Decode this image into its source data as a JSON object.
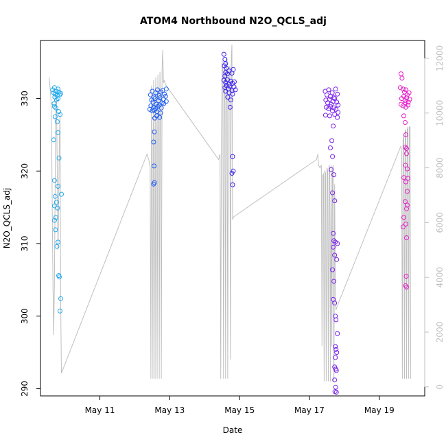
{
  "chart_data": {
    "type": "scatter",
    "title": "ATOM4 Northbound N2O_QCLS_adj",
    "xlabel": "Date",
    "ylabel": "N2O_QCLS_adj",
    "x_ticks": [
      "May 11",
      "May 13",
      "May 15",
      "May 17",
      "May 19"
    ],
    "x_tick_days": [
      11,
      13,
      15,
      17,
      19
    ],
    "xlim_days": [
      9.3,
      20.3
    ],
    "y_ticks": [
      290,
      300,
      310,
      320,
      330
    ],
    "ylim": [
      289,
      338
    ],
    "y2_ticks": [
      0,
      2000,
      4000,
      6000,
      8000,
      10000,
      12000
    ],
    "y2lim": [
      -330,
      12650
    ],
    "grid": false,
    "legend": "none",
    "colors": {
      "frame": "#000000",
      "altitude_line": "#bfbfbf",
      "right_axis": "#bfbfbf"
    },
    "series": [
      {
        "color": "#1fa8ee",
        "points": [
          [
            9.65,
            331.2
          ],
          [
            9.68,
            330.8
          ],
          [
            9.7,
            331.5
          ],
          [
            9.72,
            330.6
          ],
          [
            9.75,
            331.0
          ],
          [
            9.78,
            330.4
          ],
          [
            9.8,
            331.3
          ],
          [
            9.83,
            330.9
          ],
          [
            9.85,
            330.5
          ],
          [
            9.88,
            330.7
          ],
          [
            9.71,
            330.2
          ],
          [
            9.76,
            329.8
          ],
          [
            9.8,
            330.0
          ],
          [
            9.69,
            329.3
          ],
          [
            9.74,
            328.7
          ],
          [
            9.7,
            328.9
          ],
          [
            9.82,
            328.2
          ],
          [
            9.72,
            327.5
          ],
          [
            9.86,
            327.8
          ],
          [
            9.78,
            326.8
          ],
          [
            9.8,
            325.3
          ],
          [
            9.68,
            324.3
          ],
          [
            9.83,
            321.8
          ],
          [
            9.7,
            318.7
          ],
          [
            9.8,
            317.9
          ],
          [
            9.9,
            316.8
          ],
          [
            9.72,
            316.5
          ],
          [
            9.76,
            315.7
          ],
          [
            9.7,
            315.2
          ],
          [
            9.79,
            314.9
          ],
          [
            9.74,
            313.6
          ],
          [
            9.7,
            313.2
          ],
          [
            9.73,
            311.9
          ],
          [
            9.8,
            310.2
          ],
          [
            9.77,
            309.6
          ],
          [
            9.82,
            305.6
          ],
          [
            9.84,
            305.4
          ],
          [
            9.88,
            302.4
          ],
          [
            9.86,
            300.7
          ]
        ]
      },
      {
        "color": "#1f5ef4",
        "points": [
          [
            12.45,
            330.5
          ],
          [
            12.5,
            331.0
          ],
          [
            12.55,
            330.2
          ],
          [
            12.6,
            330.8
          ],
          [
            12.65,
            331.2
          ],
          [
            12.7,
            330.4
          ],
          [
            12.75,
            330.9
          ],
          [
            12.8,
            331.1
          ],
          [
            12.85,
            330.6
          ],
          [
            12.9,
            331.3
          ],
          [
            12.48,
            329.8
          ],
          [
            12.52,
            329.5
          ],
          [
            12.58,
            330.0
          ],
          [
            12.62,
            329.2
          ],
          [
            12.68,
            329.7
          ],
          [
            12.72,
            330.1
          ],
          [
            12.78,
            329.4
          ],
          [
            12.82,
            329.9
          ],
          [
            12.88,
            330.3
          ],
          [
            12.46,
            329.0
          ],
          [
            12.54,
            328.8
          ],
          [
            12.6,
            328.6
          ],
          [
            12.66,
            328.9
          ],
          [
            12.7,
            329.1
          ],
          [
            12.76,
            328.7
          ],
          [
            12.83,
            329.3
          ],
          [
            12.9,
            329.6
          ],
          [
            12.43,
            328.5
          ],
          [
            12.5,
            328.3
          ],
          [
            12.56,
            328.4
          ],
          [
            12.63,
            328.2
          ],
          [
            12.74,
            328.0
          ],
          [
            12.57,
            327.3
          ],
          [
            12.63,
            327.6
          ],
          [
            12.71,
            327.4
          ],
          [
            12.56,
            325.4
          ],
          [
            12.54,
            324.0
          ],
          [
            12.55,
            320.7
          ],
          [
            12.56,
            318.4
          ],
          [
            12.54,
            318.2
          ]
        ]
      },
      {
        "color": "#3b22f2",
        "points": [
          [
            14.55,
            336.1
          ],
          [
            14.58,
            335.4
          ],
          [
            14.6,
            334.8
          ],
          [
            14.56,
            334.5
          ],
          [
            14.62,
            334.2
          ],
          [
            14.6,
            333.6
          ],
          [
            14.65,
            333.4
          ],
          [
            14.58,
            333.1
          ],
          [
            14.7,
            333.8
          ],
          [
            14.78,
            333.5
          ],
          [
            14.82,
            334.0
          ],
          [
            14.55,
            332.5
          ],
          [
            14.6,
            332.2
          ],
          [
            14.65,
            332.6
          ],
          [
            14.7,
            332.0
          ],
          [
            14.75,
            332.4
          ],
          [
            14.8,
            332.1
          ],
          [
            14.85,
            332.3
          ],
          [
            14.58,
            331.5
          ],
          [
            14.62,
            331.8
          ],
          [
            14.68,
            331.3
          ],
          [
            14.72,
            331.7
          ],
          [
            14.78,
            331.1
          ],
          [
            14.84,
            331.6
          ],
          [
            14.6,
            331.0
          ],
          [
            14.7,
            330.8
          ],
          [
            14.8,
            330.6
          ],
          [
            14.88,
            331.2
          ],
          [
            14.66,
            330.2
          ],
          [
            14.75,
            329.8
          ],
          [
            14.73,
            328.8
          ],
          [
            14.8,
            322.0
          ],
          [
            14.82,
            320.0
          ],
          [
            14.78,
            319.7
          ],
          [
            14.8,
            318.1
          ]
        ]
      },
      {
        "color": "#7920ee",
        "points": [
          [
            17.45,
            331.0
          ],
          [
            17.5,
            330.5
          ],
          [
            17.55,
            331.2
          ],
          [
            17.6,
            330.3
          ],
          [
            17.65,
            330.8
          ],
          [
            17.7,
            330.1
          ],
          [
            17.75,
            331.3
          ],
          [
            17.8,
            330.6
          ],
          [
            17.47,
            329.8
          ],
          [
            17.52,
            329.4
          ],
          [
            17.58,
            329.9
          ],
          [
            17.62,
            329.2
          ],
          [
            17.68,
            329.6
          ],
          [
            17.72,
            330.0
          ],
          [
            17.78,
            329.5
          ],
          [
            17.82,
            329.1
          ],
          [
            17.48,
            328.8
          ],
          [
            17.55,
            328.6
          ],
          [
            17.6,
            328.9
          ],
          [
            17.66,
            328.3
          ],
          [
            17.7,
            328.7
          ],
          [
            17.76,
            328.5
          ],
          [
            17.82,
            328.1
          ],
          [
            17.46,
            327.7
          ],
          [
            17.58,
            327.6
          ],
          [
            17.72,
            327.8
          ],
          [
            17.8,
            327.4
          ],
          [
            17.68,
            326.2
          ],
          [
            17.64,
            324.2
          ],
          [
            17.6,
            323.2
          ],
          [
            17.66,
            322.0
          ],
          [
            17.62,
            320.2
          ],
          [
            17.7,
            319.5
          ],
          [
            17.66,
            317.0
          ],
          [
            17.72,
            315.9
          ],
          [
            17.68,
            311.4
          ],
          [
            17.7,
            310.4
          ],
          [
            17.74,
            310.2
          ],
          [
            17.8,
            310.0
          ],
          [
            17.68,
            309.5
          ],
          [
            17.72,
            308.4
          ],
          [
            17.78,
            307.8
          ],
          [
            17.66,
            306.4
          ],
          [
            17.7,
            304.8
          ],
          [
            17.68,
            302.3
          ],
          [
            17.72,
            301.8
          ],
          [
            17.74,
            300.0
          ],
          [
            17.76,
            299.5
          ],
          [
            17.8,
            297.6
          ],
          [
            17.74,
            295.8
          ],
          [
            17.76,
            295.4
          ],
          [
            17.78,
            295.0
          ],
          [
            17.74,
            294.3
          ],
          [
            17.72,
            293.0
          ],
          [
            17.75,
            292.7
          ],
          [
            17.77,
            292.5
          ],
          [
            17.72,
            291.2
          ],
          [
            17.75,
            290.2
          ],
          [
            17.73,
            289.6
          ],
          [
            17.77,
            289.5
          ]
        ]
      },
      {
        "color": "#e61ec8",
        "points": [
          [
            19.62,
            333.4
          ],
          [
            19.65,
            332.8
          ],
          [
            19.6,
            331.5
          ],
          [
            19.68,
            331.3
          ],
          [
            19.72,
            330.9
          ],
          [
            19.76,
            331.2
          ],
          [
            19.8,
            330.5
          ],
          [
            19.85,
            330.8
          ],
          [
            19.64,
            330.0
          ],
          [
            19.7,
            330.3
          ],
          [
            19.74,
            329.7
          ],
          [
            19.78,
            330.1
          ],
          [
            19.83,
            329.5
          ],
          [
            19.87,
            329.9
          ],
          [
            19.62,
            329.2
          ],
          [
            19.68,
            329.0
          ],
          [
            19.75,
            329.4
          ],
          [
            19.82,
            329.1
          ],
          [
            19.76,
            328.8
          ],
          [
            19.7,
            327.6
          ],
          [
            19.74,
            326.7
          ],
          [
            19.76,
            325.0
          ],
          [
            19.74,
            323.3
          ],
          [
            19.78,
            323.1
          ],
          [
            19.78,
            322.4
          ],
          [
            19.75,
            320.8
          ],
          [
            19.8,
            320.3
          ],
          [
            19.7,
            319.1
          ],
          [
            19.82,
            319.0
          ],
          [
            19.76,
            318.5
          ],
          [
            19.8,
            317.2
          ],
          [
            19.74,
            315.8
          ],
          [
            19.8,
            315.3
          ],
          [
            19.78,
            314.8
          ],
          [
            19.7,
            313.6
          ],
          [
            19.76,
            312.7
          ],
          [
            19.68,
            312.3
          ],
          [
            19.78,
            310.8
          ],
          [
            19.77,
            305.5
          ],
          [
            19.75,
            304.2
          ],
          [
            19.78,
            304.0
          ]
        ]
      }
    ],
    "altitude_series": {
      "color": "#bfbfbf",
      "points": [
        [
          9.55,
          11300
        ],
        [
          9.6,
          10500
        ],
        [
          9.62,
          9000
        ],
        [
          9.64,
          6000
        ],
        [
          9.66,
          3500
        ],
        [
          9.68,
          1900
        ],
        [
          9.7,
          4000
        ],
        [
          9.72,
          7500
        ],
        [
          9.74,
          10300
        ],
        [
          9.76,
          10500
        ],
        [
          9.78,
          8000
        ],
        [
          9.8,
          5000
        ],
        [
          9.82,
          6500
        ],
        [
          9.84,
          9000
        ],
        [
          9.86,
          10000
        ],
        [
          9.88,
          3000
        ],
        [
          9.9,
          500
        ],
        [
          12.35,
          8500
        ],
        [
          12.4,
          8300
        ],
        [
          12.44,
          8000
        ],
        [
          12.46,
          300
        ],
        [
          12.48,
          11000
        ],
        [
          12.5,
          8700
        ],
        [
          12.52,
          300
        ],
        [
          12.54,
          11200
        ],
        [
          12.56,
          8800
        ],
        [
          12.58,
          300
        ],
        [
          12.6,
          11300
        ],
        [
          12.62,
          8900
        ],
        [
          12.64,
          300
        ],
        [
          12.66,
          11400
        ],
        [
          12.68,
          8900
        ],
        [
          12.7,
          300
        ],
        [
          12.72,
          11500
        ],
        [
          12.74,
          9000
        ],
        [
          12.76,
          300
        ],
        [
          12.78,
          11600
        ],
        [
          12.8,
          12300
        ],
        [
          12.82,
          11100
        ],
        [
          12.84,
          11200
        ],
        [
          12.86,
          11100
        ],
        [
          12.9,
          11000
        ],
        [
          14.4,
          8300
        ],
        [
          14.44,
          8500
        ],
        [
          14.46,
          300
        ],
        [
          14.48,
          9000
        ],
        [
          14.5,
          11900
        ],
        [
          14.52,
          11600
        ],
        [
          14.54,
          300
        ],
        [
          14.56,
          11700
        ],
        [
          14.58,
          11500
        ],
        [
          14.6,
          300
        ],
        [
          14.62,
          12000
        ],
        [
          14.64,
          11900
        ],
        [
          14.66,
          300
        ],
        [
          14.68,
          11600
        ],
        [
          14.72,
          11700
        ],
        [
          14.74,
          1000
        ],
        [
          14.76,
          11800
        ],
        [
          14.78,
          12500
        ],
        [
          14.8,
          6100
        ],
        [
          14.82,
          6200
        ],
        [
          17.2,
          8300
        ],
        [
          17.24,
          8500
        ],
        [
          17.26,
          8100
        ],
        [
          17.3,
          8000
        ],
        [
          17.34,
          8100
        ],
        [
          17.36,
          1500
        ],
        [
          17.38,
          7700
        ],
        [
          17.4,
          7800
        ],
        [
          17.42,
          200
        ],
        [
          17.44,
          7900
        ],
        [
          17.46,
          7800
        ],
        [
          17.48,
          200
        ],
        [
          17.5,
          8000
        ],
        [
          17.52,
          7900
        ],
        [
          17.54,
          200
        ],
        [
          17.56,
          8100
        ],
        [
          17.58,
          8000
        ],
        [
          17.6,
          200
        ],
        [
          17.62,
          8100
        ],
        [
          17.64,
          1500
        ],
        [
          17.66,
          7900
        ],
        [
          17.68,
          8100
        ],
        [
          17.7,
          200
        ],
        [
          17.72,
          7400
        ],
        [
          17.74,
          3400
        ],
        [
          17.76,
          2800
        ],
        [
          17.78,
          2900
        ],
        [
          19.62,
          8800
        ],
        [
          19.64,
          8500
        ],
        [
          19.66,
          300
        ],
        [
          19.68,
          9000
        ],
        [
          19.7,
          9200
        ],
        [
          19.72,
          300
        ],
        [
          19.74,
          9300
        ],
        [
          19.76,
          9400
        ],
        [
          19.78,
          300
        ],
        [
          19.8,
          9400
        ],
        [
          19.82,
          9500
        ],
        [
          19.84,
          300
        ],
        [
          19.86,
          9500
        ],
        [
          19.88,
          9500
        ],
        [
          19.9,
          300
        ]
      ]
    }
  }
}
